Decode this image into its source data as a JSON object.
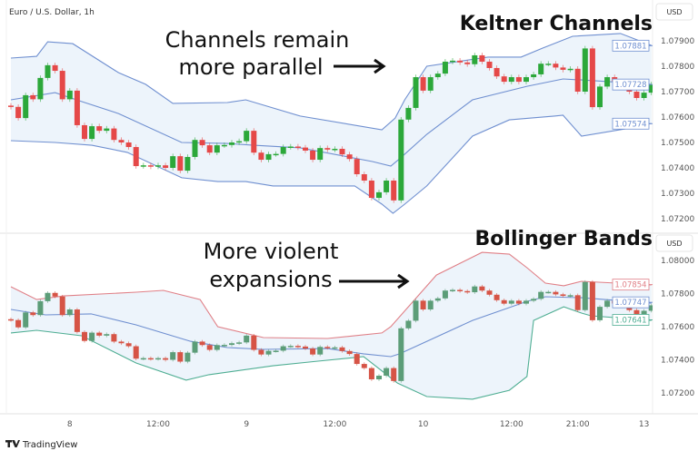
{
  "symbol_title": "Euro / U.S. Dollar, 1h",
  "currency": "USD",
  "brand": "TradingView",
  "colors": {
    "keltner_band": "#6f8fd0",
    "band_fill": "#edf4fb",
    "up_top": "#2ca83a",
    "down_top": "#e54848",
    "up_bottom": "#5c9d78",
    "down_bottom": "#d65446",
    "bb_upper": "#e07f86",
    "bb_middle": "#6f8fd0",
    "bb_lower": "#4fae93"
  },
  "annotations": {
    "top_line1": "Channels remain",
    "top_line2": "more parallel",
    "top_heading": "Keltner Channels",
    "bottom_line1": "More violent",
    "bottom_line2": "expansions",
    "bottom_heading": "Bollinger Bands"
  },
  "chart_data": [
    {
      "type": "candlestick",
      "title": "Keltner Channels",
      "x_ticks": [
        {
          "index": 8,
          "label": "8"
        },
        {
          "index": 20,
          "label": "12:00"
        },
        {
          "index": 32,
          "label": "9"
        },
        {
          "index": 44,
          "label": "12:00"
        },
        {
          "index": 56,
          "label": "10"
        },
        {
          "index": 68,
          "label": "12:00"
        },
        {
          "index": 77,
          "label": "21:00"
        },
        {
          "index": 86,
          "label": "13"
        }
      ],
      "y_ticks": [
        "1.07900",
        "1.07800",
        "1.07700",
        "1.07600",
        "1.07500",
        "1.07400",
        "1.07300",
        "1.07200"
      ],
      "ylim": [
        1.0711,
        1.0806
      ],
      "first_open": 1.07645,
      "closes": [
        1.0764,
        1.07596,
        1.07686,
        1.0767,
        1.07754,
        1.07804,
        1.07782,
        1.0767,
        1.07704,
        1.07568,
        1.07514,
        1.07564,
        1.07546,
        1.07555,
        1.0751,
        1.075,
        1.07482,
        1.07407,
        1.0741,
        1.07405,
        1.0741,
        1.074,
        1.07446,
        1.07389,
        1.07443,
        1.0751,
        1.07489,
        1.0746,
        1.07489,
        1.0749,
        1.075,
        1.07505,
        1.07546,
        1.0746,
        1.07432,
        1.07454,
        1.07455,
        1.07482,
        1.07484,
        1.0748,
        1.07468,
        1.07432,
        1.07478,
        1.07472,
        1.07475,
        1.07453,
        1.07435,
        1.07375,
        1.0735,
        1.07282,
        1.07304,
        1.0735,
        1.07272,
        1.0759,
        1.07636,
        1.07757,
        1.07704,
        1.07757,
        1.07771,
        1.07818,
        1.07822,
        1.07815,
        1.07808,
        1.07843,
        1.07818,
        1.07793,
        1.0776,
        1.07739,
        1.07757,
        1.07739,
        1.07757,
        1.07768,
        1.0781,
        1.0781,
        1.07795,
        1.07786,
        1.0779,
        1.077,
        1.0787,
        1.07639,
        1.0772,
        1.07757,
        1.0774,
        1.07727,
        1.077,
        1.07675,
        1.07696,
        1.07729
      ],
      "bands": {
        "upper": [
          [
            0,
            1.07832
          ],
          [
            3.5,
            1.07839
          ],
          [
            5,
            1.07896
          ],
          [
            8.4,
            1.07889
          ],
          [
            14.6,
            1.07775
          ],
          [
            18.3,
            1.07729
          ],
          [
            22,
            1.07654
          ],
          [
            29.4,
            1.07657
          ],
          [
            31.9,
            1.07668
          ],
          [
            39.3,
            1.07604
          ],
          [
            50.4,
            1.0755
          ],
          [
            52.2,
            1.07596
          ],
          [
            53.5,
            1.07668
          ],
          [
            56.5,
            1.078
          ],
          [
            64.8,
            1.07836
          ],
          [
            69.3,
            1.07836
          ],
          [
            72.2,
            1.07871
          ],
          [
            76.3,
            1.07918
          ],
          [
            82.8,
            1.07929
          ],
          [
            87,
            1.07882
          ]
        ],
        "middle": [
          [
            0,
            1.07668
          ],
          [
            6,
            1.07696
          ],
          [
            9.6,
            1.07661
          ],
          [
            14.6,
            1.07614
          ],
          [
            23.2,
            1.075
          ],
          [
            29.4,
            1.07496
          ],
          [
            33,
            1.07489
          ],
          [
            39.3,
            1.07479
          ],
          [
            49.1,
            1.07425
          ],
          [
            51.6,
            1.07407
          ],
          [
            52.8,
            1.07436
          ],
          [
            56.5,
            1.07532
          ],
          [
            62.7,
            1.07668
          ],
          [
            70.1,
            1.07721
          ],
          [
            75,
            1.0775
          ],
          [
            77.5,
            1.07746
          ],
          [
            87,
            1.07729
          ]
        ],
        "lower": [
          [
            0,
            1.07507
          ],
          [
            6,
            1.075
          ],
          [
            11,
            1.07489
          ],
          [
            15.8,
            1.07461
          ],
          [
            23.2,
            1.07361
          ],
          [
            28.1,
            1.07346
          ],
          [
            31.9,
            1.07346
          ],
          [
            35.6,
            1.07329
          ],
          [
            46.7,
            1.07329
          ],
          [
            50.4,
            1.07257
          ],
          [
            51.9,
            1.07221
          ],
          [
            53.5,
            1.07257
          ],
          [
            56.5,
            1.07329
          ],
          [
            62.7,
            1.07525
          ],
          [
            67.7,
            1.07589
          ],
          [
            73.8,
            1.07604
          ],
          [
            75,
            1.07607
          ],
          [
            77.5,
            1.07525
          ],
          [
            85,
            1.07561
          ],
          [
            87,
            1.07575
          ]
        ]
      },
      "last_values": {
        "upper": "1.07881",
        "middle": "1.07728",
        "lower": "1.07574"
      }
    },
    {
      "type": "candlestick",
      "title": "Bollinger Bands",
      "y_ticks": [
        "1.08000",
        "1.07800",
        "1.07600",
        "1.07400",
        "1.07200"
      ],
      "ylim": [
        1.0711,
        1.0816
      ],
      "bands": {
        "upper": [
          [
            0,
            1.07841
          ],
          [
            3.5,
            1.07764
          ],
          [
            7.2,
            1.07786
          ],
          [
            17,
            1.07808
          ],
          [
            20.7,
            1.07819
          ],
          [
            25.7,
            1.07764
          ],
          [
            28.1,
            1.076
          ],
          [
            34.3,
            1.07534
          ],
          [
            43,
            1.07529
          ],
          [
            50.4,
            1.07562
          ],
          [
            51.6,
            1.076
          ],
          [
            57.8,
            1.07912
          ],
          [
            64,
            1.08049
          ],
          [
            67.7,
            1.08038
          ],
          [
            70.1,
            1.07956
          ],
          [
            72.6,
            1.07863
          ],
          [
            75.1,
            1.07847
          ],
          [
            77.5,
            1.07874
          ],
          [
            87,
            1.07852
          ]
        ],
        "middle": [
          [
            0,
            1.07704
          ],
          [
            4.7,
            1.07671
          ],
          [
            10.9,
            1.07677
          ],
          [
            17,
            1.07611
          ],
          [
            24.4,
            1.07512
          ],
          [
            29.4,
            1.07474
          ],
          [
            34.3,
            1.07463
          ],
          [
            43,
            1.07468
          ],
          [
            47.9,
            1.07436
          ],
          [
            51.6,
            1.07419
          ],
          [
            52.8,
            1.07436
          ],
          [
            62.7,
            1.07638
          ],
          [
            70.1,
            1.07753
          ],
          [
            72.6,
            1.07781
          ],
          [
            77.5,
            1.07775
          ],
          [
            87,
            1.07742
          ]
        ],
        "lower": [
          [
            0,
            1.07562
          ],
          [
            3.5,
            1.07578
          ],
          [
            9.6,
            1.07545
          ],
          [
            17,
            1.07381
          ],
          [
            23.8,
            1.07277
          ],
          [
            26.9,
            1.0731
          ],
          [
            35.6,
            1.07364
          ],
          [
            41.7,
            1.07392
          ],
          [
            47.9,
            1.07419
          ],
          [
            52.5,
            1.0726
          ],
          [
            56.5,
            1.07178
          ],
          [
            62.7,
            1.07162
          ],
          [
            67.7,
            1.07216
          ],
          [
            70.1,
            1.07299
          ],
          [
            71,
            1.07638
          ],
          [
            75.1,
            1.0772
          ],
          [
            77.5,
            1.07682
          ],
          [
            78.8,
            1.07666
          ],
          [
            87,
            1.07638
          ]
        ]
      },
      "last_values": {
        "upper": "1.07854",
        "middle": "1.07747",
        "lower": "1.07641"
      }
    }
  ]
}
